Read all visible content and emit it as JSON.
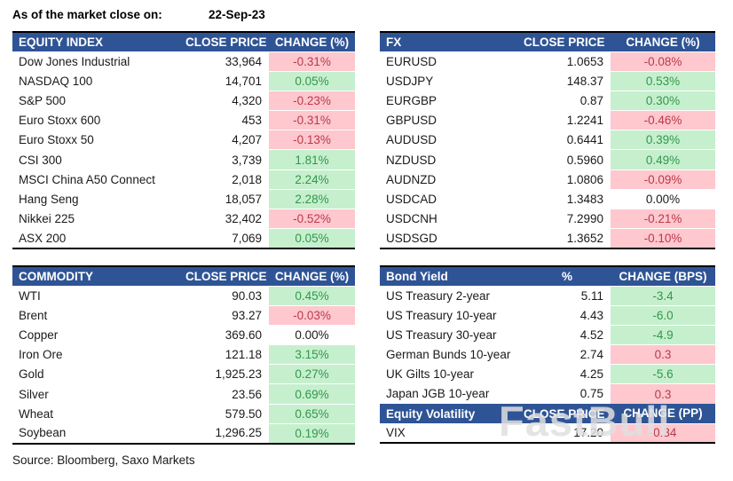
{
  "header": {
    "label": "As of the market close on:",
    "date": "22-Sep-23"
  },
  "colors": {
    "header_bg": "#2F5496",
    "positive_bg": "#C6EFCE",
    "positive_text": "#31984A",
    "negative_bg": "#FFC7CE",
    "negative_text": "#B83A4B"
  },
  "tables": {
    "equity": {
      "title": "EQUITY INDEX",
      "price_header": "CLOSE PRICE",
      "change_header": "CHANGE (%)",
      "rows": [
        {
          "name": "Dow Jones Industrial",
          "price": "33,964",
          "change": "-0.31%",
          "tone": "neg"
        },
        {
          "name": "NASDAQ 100",
          "price": "14,701",
          "change": "0.05%",
          "tone": "pos"
        },
        {
          "name": "S&P 500",
          "price": "4,320",
          "change": "-0.23%",
          "tone": "neg"
        },
        {
          "name": "Euro Stoxx 600",
          "price": "453",
          "change": "-0.31%",
          "tone": "neg"
        },
        {
          "name": "Euro Stoxx 50",
          "price": "4,207",
          "change": "-0.13%",
          "tone": "neg"
        },
        {
          "name": "CSI 300",
          "price": "3,739",
          "change": "1.81%",
          "tone": "pos"
        },
        {
          "name": "MSCI China A50 Connect",
          "price": "2,018",
          "change": "2.24%",
          "tone": "pos"
        },
        {
          "name": "Hang Seng",
          "price": "18,057",
          "change": "2.28%",
          "tone": "pos"
        },
        {
          "name": "Nikkei 225",
          "price": "32,402",
          "change": "-0.52%",
          "tone": "neg"
        },
        {
          "name": "ASX 200",
          "price": "7,069",
          "change": "0.05%",
          "tone": "pos"
        }
      ]
    },
    "fx": {
      "title": "FX",
      "price_header": "CLOSE PRICE",
      "change_header": "CHANGE (%)",
      "rows": [
        {
          "name": "EURUSD",
          "price": "1.0653",
          "change": "-0.08%",
          "tone": "neg"
        },
        {
          "name": "USDJPY",
          "price": "148.37",
          "change": "0.53%",
          "tone": "pos"
        },
        {
          "name": "EURGBP",
          "price": "0.87",
          "change": "0.30%",
          "tone": "pos"
        },
        {
          "name": "GBPUSD",
          "price": "1.2241",
          "change": "-0.46%",
          "tone": "neg"
        },
        {
          "name": "AUDUSD",
          "price": "0.6441",
          "change": "0.39%",
          "tone": "pos"
        },
        {
          "name": "NZDUSD",
          "price": "0.5960",
          "change": "0.49%",
          "tone": "pos"
        },
        {
          "name": "AUDNZD",
          "price": "1.0806",
          "change": "-0.09%",
          "tone": "neg"
        },
        {
          "name": "USDCAD",
          "price": "1.3483",
          "change": "0.00%",
          "tone": "flat"
        },
        {
          "name": "USDCNH",
          "price": "7.2990",
          "change": "-0.21%",
          "tone": "neg"
        },
        {
          "name": "USDSGD",
          "price": "1.3652",
          "change": "-0.10%",
          "tone": "neg"
        }
      ]
    },
    "commodity": {
      "title": "COMMODITY",
      "price_header": "CLOSE PRICE",
      "change_header": "CHANGE (%)",
      "rows": [
        {
          "name": "WTI",
          "price": "90.03",
          "change": "0.45%",
          "tone": "pos"
        },
        {
          "name": "Brent",
          "price": "93.27",
          "change": "-0.03%",
          "tone": "neg"
        },
        {
          "name": "Copper",
          "price": "369.60",
          "change": "0.00%",
          "tone": "flat"
        },
        {
          "name": "Iron Ore",
          "price": "121.18",
          "change": "3.15%",
          "tone": "pos"
        },
        {
          "name": "Gold",
          "price": "1,925.23",
          "change": "0.27%",
          "tone": "pos"
        },
        {
          "name": "Silver",
          "price": "23.56",
          "change": "0.69%",
          "tone": "pos"
        },
        {
          "name": "Wheat",
          "price": "579.50",
          "change": "0.65%",
          "tone": "pos"
        },
        {
          "name": "Soybean",
          "price": "1,296.25",
          "change": "0.19%",
          "tone": "pos"
        }
      ]
    },
    "bond": {
      "title": "Bond Yield",
      "price_header": "%",
      "change_header": "CHANGE (BPS)",
      "rows": [
        {
          "name": "US Treasury 2-year",
          "price": "5.11",
          "change": "-3.4",
          "tone": "pos"
        },
        {
          "name": "US Treasury 10-year",
          "price": "4.43",
          "change": "-6.0",
          "tone": "pos"
        },
        {
          "name": "US Treasury 30-year",
          "price": "4.52",
          "change": "-4.9",
          "tone": "pos"
        },
        {
          "name": "German Bunds 10-year",
          "price": "2.74",
          "change": "0.3",
          "tone": "neg"
        },
        {
          "name": "UK Gilts 10-year",
          "price": "4.25",
          "change": "-5.6",
          "tone": "pos"
        },
        {
          "name": "Japan JGB 10-year",
          "price": "0.75",
          "change": "0.3",
          "tone": "neg"
        }
      ]
    },
    "volatility": {
      "title": "Equity Volatility",
      "price_header": "CLOSE PRICE",
      "change_header": "CHANGE (PP)",
      "rows": [
        {
          "name": "VIX",
          "price": "17.20",
          "change": "-0.34",
          "tone": "neg"
        }
      ]
    }
  },
  "watermark": "FastBull",
  "source": "Source: Bloomberg, Saxo Markets"
}
